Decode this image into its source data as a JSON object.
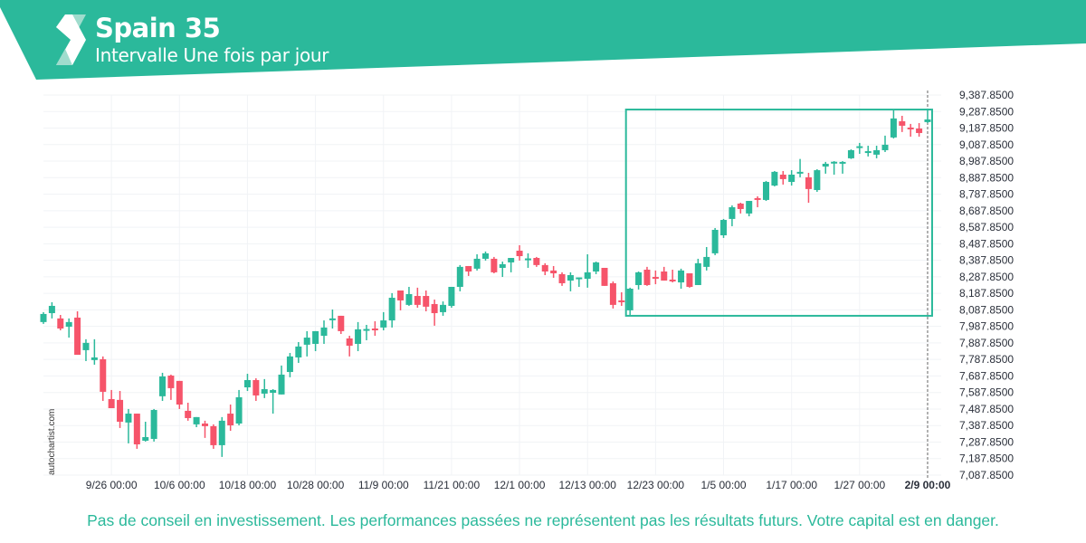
{
  "header": {
    "title": "Spain 35",
    "subtitle": "Intervalle Une fois par jour",
    "brand_color": "#2bb99b",
    "logo": "autochartist-logo"
  },
  "watermark": "autochartist.com",
  "footer": "Pas de conseil en investissement. Les performances passées ne représentent pas les résultats futurs. Votre capital est en danger.",
  "chart_data": {
    "type": "candlestick",
    "title": "Spain 35",
    "ylim": [
      7087.85,
      9387.85
    ],
    "grid": true,
    "colors": {
      "up": "#2bb99b",
      "down": "#f6546a",
      "pattern": "#2bb99b"
    },
    "y_ticks": [
      "9,387.8500",
      "9,287.8500",
      "9,187.8500",
      "9,087.8500",
      "8,987.8500",
      "8,887.8500",
      "8,787.8500",
      "8,687.8500",
      "8,587.8500",
      "8,487.8500",
      "8,387.8500",
      "8,287.8500",
      "8,187.8500",
      "8,087.8500",
      "7,987.8500",
      "7,887.8500",
      "7,787.8500",
      "7,687.8500",
      "7,587.8500",
      "7,487.8500",
      "7,387.8500",
      "7,287.8500",
      "7,187.8500",
      "7,087.8500"
    ],
    "x_ticks": [
      {
        "label": "9/26 00:00",
        "candle": 8
      },
      {
        "label": "10/6 00:00",
        "candle": 16
      },
      {
        "label": "10/18 00:00",
        "candle": 24
      },
      {
        "label": "10/28 00:00",
        "candle": 32
      },
      {
        "label": "11/9 00:00",
        "candle": 40
      },
      {
        "label": "11/21 00:00",
        "candle": 48
      },
      {
        "label": "12/1 00:00",
        "candle": 56
      },
      {
        "label": "12/13 00:00",
        "candle": 64
      },
      {
        "label": "12/23 00:00",
        "candle": 72
      },
      {
        "label": "1/5 00:00",
        "candle": 80
      },
      {
        "label": "1/17 00:00",
        "candle": 88
      },
      {
        "label": "1/27 00:00",
        "candle": 96
      },
      {
        "label": "2/9 00:00",
        "candle": 104,
        "highlight": true
      }
    ],
    "pattern": {
      "type": "rectangle",
      "upper": 9300,
      "lower": 8052,
      "from_candle": 69,
      "to_candle": 104
    },
    "ohlc": [
      [
        8014,
        8074,
        8003,
        8063
      ],
      [
        8068,
        8134,
        8036,
        8112
      ],
      [
        8036,
        8057,
        7964,
        7975
      ],
      [
        7986,
        8036,
        7920,
        8014
      ],
      [
        8041,
        8079,
        7816,
        7816
      ],
      [
        7844,
        7910,
        7778,
        7888
      ],
      [
        7784,
        7910,
        7756,
        7800
      ],
      [
        7789,
        7806,
        7537,
        7592
      ],
      [
        7548,
        7603,
        7493,
        7493
      ],
      [
        7543,
        7597,
        7373,
        7411
      ],
      [
        7406,
        7488,
        7280,
        7460
      ],
      [
        7460,
        7460,
        7247,
        7274
      ],
      [
        7296,
        7411,
        7291,
        7318
      ],
      [
        7307,
        7488,
        7291,
        7482
      ],
      [
        7565,
        7707,
        7537,
        7685
      ],
      [
        7690,
        7696,
        7543,
        7614
      ],
      [
        7658,
        7658,
        7488,
        7515
      ],
      [
        7477,
        7526,
        7417,
        7433
      ],
      [
        7395,
        7439,
        7378,
        7439
      ],
      [
        7400,
        7417,
        7313,
        7384
      ],
      [
        7384,
        7395,
        7247,
        7269
      ],
      [
        7269,
        7439,
        7198,
        7417
      ],
      [
        7460,
        7515,
        7356,
        7389
      ],
      [
        7400,
        7603,
        7389,
        7559
      ],
      [
        7619,
        7701,
        7597,
        7663
      ],
      [
        7663,
        7674,
        7537,
        7570
      ],
      [
        7581,
        7669,
        7554,
        7608
      ],
      [
        7586,
        7608,
        7460,
        7603
      ],
      [
        7576,
        7751,
        7576,
        7696
      ],
      [
        7712,
        7827,
        7680,
        7806
      ],
      [
        7800,
        7893,
        7767,
        7866
      ],
      [
        7877,
        7959,
        7806,
        7920
      ],
      [
        7882,
        7959,
        7838,
        7959
      ],
      [
        7931,
        8024,
        7882,
        7981
      ],
      [
        8030,
        8090,
        7975,
        8036
      ],
      [
        8052,
        8052,
        7942,
        7959
      ],
      [
        7915,
        7931,
        7806,
        7871
      ],
      [
        7882,
        8014,
        7838,
        7970
      ],
      [
        7968,
        7997,
        7904,
        7972
      ],
      [
        7975,
        8019,
        7931,
        7968
      ],
      [
        7981,
        8074,
        7964,
        8024
      ],
      [
        8024,
        8189,
        7981,
        8161
      ],
      [
        8205,
        8205,
        8085,
        8145
      ],
      [
        8118,
        8227,
        8112,
        8183
      ],
      [
        8172,
        8222,
        8101,
        8118
      ],
      [
        8172,
        8205,
        8079,
        8107
      ],
      [
        8123,
        8150,
        7992,
        8068
      ],
      [
        8074,
        8139,
        8052,
        8118
      ],
      [
        8112,
        8227,
        8101,
        8227
      ],
      [
        8227,
        8359,
        8200,
        8348
      ],
      [
        8353,
        8353,
        8293,
        8320
      ],
      [
        8337,
        8424,
        8326,
        8397
      ],
      [
        8397,
        8441,
        8386,
        8430
      ],
      [
        8397,
        8408,
        8309,
        8315
      ],
      [
        8342,
        8380,
        8287,
        8364
      ],
      [
        8375,
        8402,
        8315,
        8402
      ],
      [
        8446,
        8479,
        8386,
        8413
      ],
      [
        8395,
        8430,
        8342,
        8399
      ],
      [
        8402,
        8408,
        8348,
        8359
      ],
      [
        8359,
        8370,
        8298,
        8320
      ],
      [
        8326,
        8353,
        8282,
        8309
      ],
      [
        8304,
        8315,
        8233,
        8249
      ],
      [
        8265,
        8315,
        8200,
        8298
      ],
      [
        8280,
        8284,
        8227,
        8284
      ],
      [
        8276,
        8424,
        8222,
        8315
      ],
      [
        8320,
        8380,
        8304,
        8375
      ],
      [
        8342,
        8342,
        8233,
        8233
      ],
      [
        8249,
        8260,
        8096,
        8118
      ],
      [
        8145,
        8194,
        8112,
        8139
      ],
      [
        8085,
        8222,
        8057,
        8216
      ],
      [
        8238,
        8320,
        8211,
        8315
      ],
      [
        8331,
        8348,
        8233,
        8238
      ],
      [
        8287,
        8326,
        8243,
        8282
      ],
      [
        8320,
        8348,
        8265,
        8265
      ],
      [
        8271,
        8331,
        8254,
        8265
      ],
      [
        8254,
        8337,
        8216,
        8326
      ],
      [
        8309,
        8309,
        8222,
        8227
      ],
      [
        8238,
        8397,
        8238,
        8370
      ],
      [
        8348,
        8468,
        8326,
        8408
      ],
      [
        8430,
        8583,
        8419,
        8572
      ],
      [
        8539,
        8638,
        8523,
        8632
      ],
      [
        8638,
        8720,
        8594,
        8709
      ],
      [
        8731,
        8736,
        8671,
        8698
      ],
      [
        8671,
        8747,
        8654,
        8747
      ],
      [
        8764,
        8775,
        8709,
        8758
      ],
      [
        8753,
        8868,
        8747,
        8862
      ],
      [
        8840,
        8928,
        8835,
        8923
      ],
      [
        8906,
        8928,
        8846,
        8879
      ],
      [
        8862,
        8933,
        8840,
        8906
      ],
      [
        8912,
        9001,
        8890,
        8923
      ],
      [
        8890,
        8917,
        8736,
        8819
      ],
      [
        8813,
        8939,
        8802,
        8933
      ],
      [
        8955,
        8983,
        8912,
        8972
      ],
      [
        8981,
        8988,
        8906,
        8984
      ],
      [
        8977,
        8988,
        8912,
        8983
      ],
      [
        9005,
        9059,
        9001,
        9054
      ],
      [
        9074,
        9098,
        9032,
        9078
      ],
      [
        9043,
        9081,
        9016,
        9048
      ],
      [
        9027,
        9081,
        9005,
        9054
      ],
      [
        9054,
        9142,
        9043,
        9087
      ],
      [
        9131,
        9295,
        9125,
        9246
      ],
      [
        9229,
        9262,
        9164,
        9202
      ],
      [
        9191,
        9213,
        9136,
        9185
      ],
      [
        9185,
        9218,
        9136,
        9158
      ],
      [
        9224,
        9306,
        9218,
        9240
      ]
    ]
  }
}
